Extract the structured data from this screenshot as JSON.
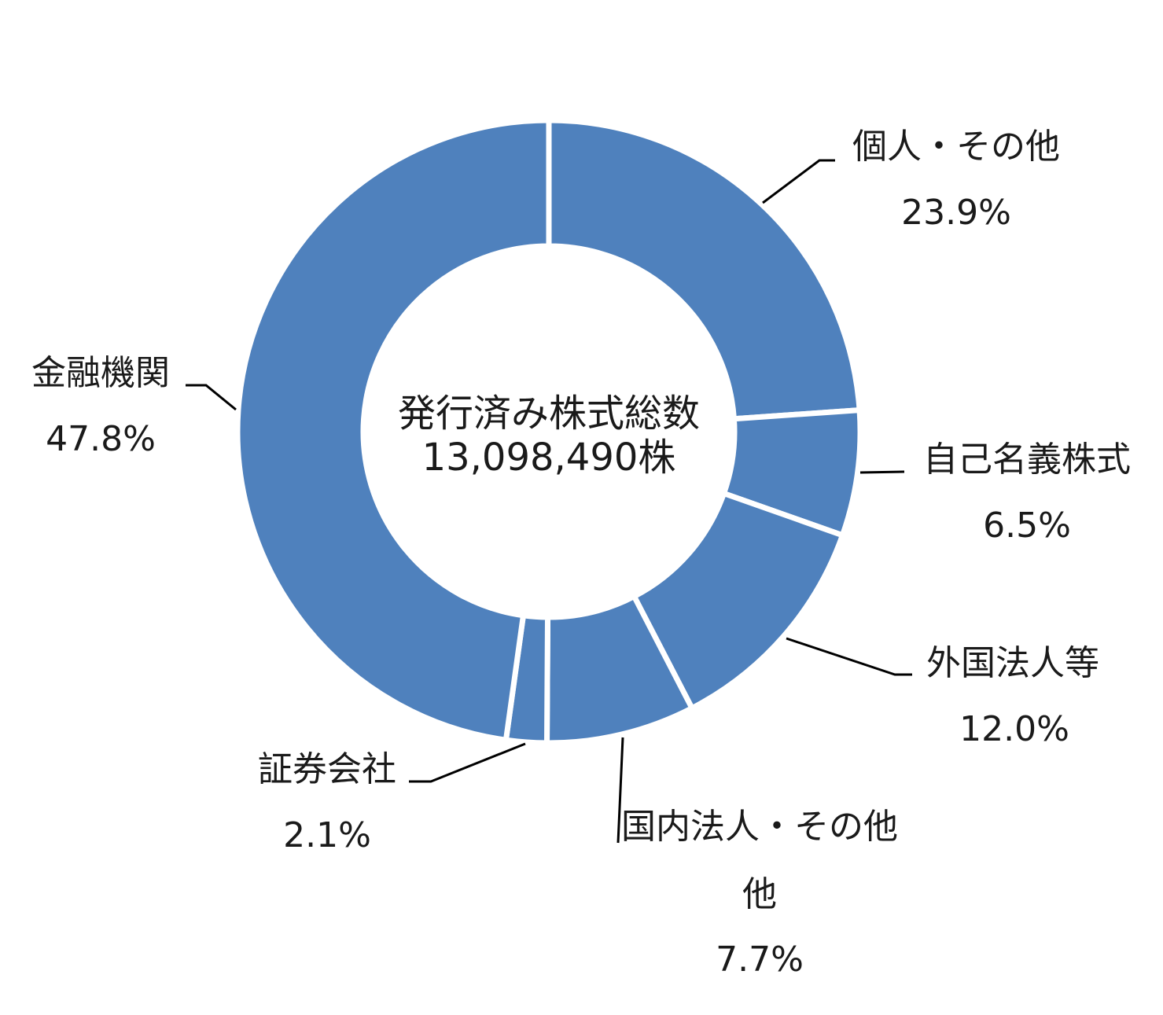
{
  "chart_data": {
    "type": "pie",
    "variant": "donut",
    "center_label": {
      "line1": "発行済み株式総数",
      "line2": "13,098,490株"
    },
    "categories": [
      "個人・その他",
      "自己名義株式",
      "外国法人等",
      "国内法人・その他",
      "証券会社",
      "金融機関"
    ],
    "values": [
      23.9,
      6.5,
      12.0,
      7.7,
      2.1,
      47.8
    ],
    "value_labels": [
      "23.9%",
      "6.5%",
      "12.0%",
      "7.7%",
      "2.1%",
      "47.8%"
    ],
    "label_lines": [
      [
        "個人・その他"
      ],
      [
        "自己名義株式"
      ],
      [
        "外国法人等"
      ],
      [
        "国内法人・その他",
        "他"
      ],
      [
        "証券会社"
      ],
      [
        "金融機関"
      ]
    ],
    "colors": {
      "slice": "#4f81bd",
      "separator": "#ffffff",
      "leader": "#000000",
      "text": "#1a1a1a"
    },
    "legend": "none"
  }
}
